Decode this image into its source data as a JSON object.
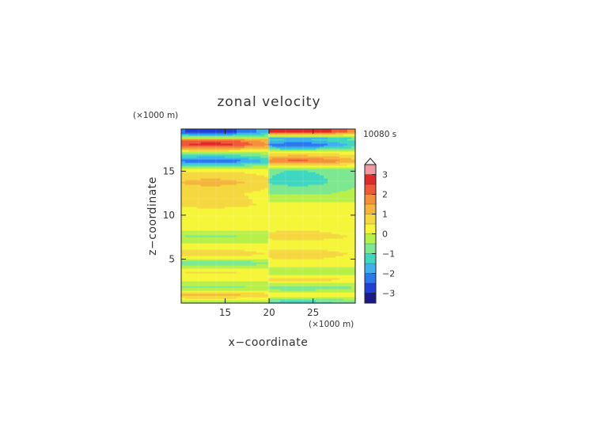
{
  "chart_data": {
    "type": "heatmap",
    "title": "zonal velocity",
    "xlabel": "x−coordinate",
    "ylabel": "z−coordinate",
    "x_unit": "(×1000 m)",
    "y_unit": "(×1000 m)",
    "time_label": "10080 s",
    "xlim": [
      10,
      29.8
    ],
    "ylim": [
      0,
      19.8
    ],
    "x_ticks": [
      "15",
      "20",
      "25"
    ],
    "x_tick_values": [
      15,
      20,
      25
    ],
    "y_ticks": [
      "5",
      "10",
      "15"
    ],
    "y_tick_values": [
      5,
      10,
      15
    ],
    "colorbar_ticks": [
      "3",
      "2",
      "1",
      "0",
      "−1",
      "−2",
      "−3"
    ],
    "colorbar_values": [
      3,
      2,
      1,
      0,
      -1,
      -2,
      -3
    ],
    "color_levels": [
      "#1a1a8c",
      "#1f3fd6",
      "#2a78ee",
      "#3fb0ee",
      "#40d7c0",
      "#7ee890",
      "#b8f04a",
      "#f5f53a",
      "#f5d840",
      "#f5b43a",
      "#f5903a",
      "#ee5a35",
      "#e02a2a",
      "#f09aa0"
    ],
    "bands": [
      {
        "z": 19.5,
        "left": -2.8,
        "right": 3.0
      },
      {
        "z": 18.8,
        "left": -0.3,
        "right": -1.8
      },
      {
        "z": 18.6,
        "left": 2.2,
        "right": -1.5
      },
      {
        "z": 18.0,
        "left": 2.8,
        "right": -2.5
      },
      {
        "z": 17.0,
        "left": -0.8,
        "right": 0.7
      },
      {
        "z": 16.2,
        "left": -2.5,
        "right": 2.2
      },
      {
        "z": 15.2,
        "left": 0.4,
        "right": -1.0
      },
      {
        "z": 13.8,
        "left": 1.2,
        "right": -1.2
      },
      {
        "z": 12.5,
        "left": 0.6,
        "right": -0.6
      },
      {
        "z": 11.2,
        "left": 0.7,
        "right": 0.2
      },
      {
        "z": 10.0,
        "left": 0.0,
        "right": 0.2
      },
      {
        "z": 8.5,
        "left": 0.3,
        "right": 0.4
      },
      {
        "z": 7.6,
        "left": -0.6,
        "right": 0.8
      },
      {
        "z": 6.8,
        "left": 0.1,
        "right": 0.2
      },
      {
        "z": 5.6,
        "left": 0.9,
        "right": 0.8
      },
      {
        "z": 4.6,
        "left": -1.0,
        "right": 0.3
      },
      {
        "z": 3.6,
        "left": 0.6,
        "right": -0.5
      },
      {
        "z": 2.7,
        "left": 0.2,
        "right": 0.8
      },
      {
        "z": 1.8,
        "left": -0.7,
        "right": -1.0
      },
      {
        "z": 1.0,
        "left": 1.2,
        "right": 0.4
      },
      {
        "z": 0.2,
        "left": -0.2,
        "right": -1.2
      }
    ]
  }
}
